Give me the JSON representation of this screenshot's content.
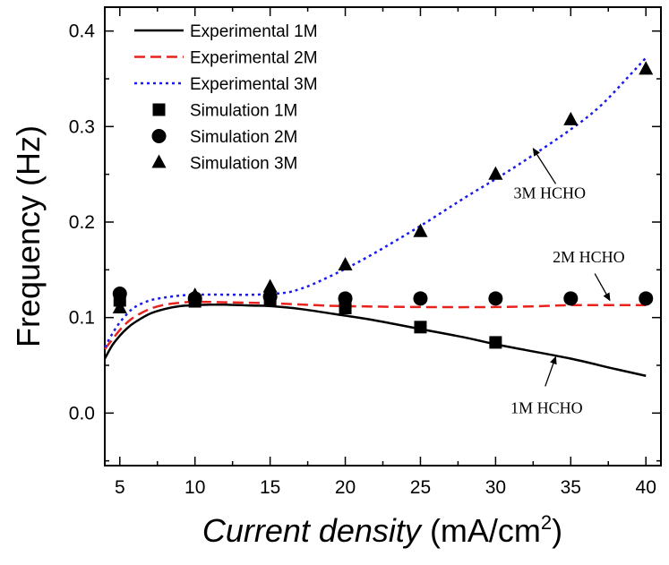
{
  "chart_data": {
    "type": "line",
    "xlabel_italic": "Current density",
    "xlabel_unit": "(mA/cm",
    "xlabel_sup": "2",
    "xlabel_close": ")",
    "ylabel": "Frequency (Hz)",
    "xlim": [
      4,
      41
    ],
    "ylim": [
      -0.055,
      0.425
    ],
    "xticks": [
      5,
      10,
      15,
      20,
      25,
      30,
      35,
      40
    ],
    "xtick_labels": [
      "5",
      "10",
      "15",
      "20",
      "25",
      "30",
      "35",
      "40"
    ],
    "yticks": [
      0.0,
      0.1,
      0.2,
      0.3,
      0.4
    ],
    "ytick_labels": [
      "0.0",
      "0.1",
      "0.2",
      "0.3",
      "0.4"
    ],
    "legend_position": "top-left",
    "series": [
      {
        "name": "Experimental 1M",
        "kind": "line",
        "style": "solid",
        "color": "#000000",
        "x": [
          4,
          4.5,
          5,
          5.5,
          6,
          7,
          8,
          9,
          10,
          11,
          12,
          13,
          14,
          15,
          17,
          20,
          22,
          25,
          28,
          30,
          32,
          35,
          38,
          40
        ],
        "y": [
          0.057,
          0.071,
          0.081,
          0.089,
          0.095,
          0.104,
          0.109,
          0.112,
          0.113,
          0.1135,
          0.1135,
          0.113,
          0.1125,
          0.112,
          0.109,
          0.102,
          0.097,
          0.088,
          0.079,
          0.072,
          0.066,
          0.057,
          0.046,
          0.039
        ]
      },
      {
        "name": "Experimental 2M",
        "kind": "line",
        "style": "dashed",
        "color": "#e8221c",
        "x": [
          4,
          4.5,
          5,
          5.5,
          6,
          7,
          8,
          9,
          10,
          12,
          15,
          18,
          20,
          25,
          30,
          33,
          35,
          38,
          40
        ],
        "y": [
          0.067,
          0.077,
          0.087,
          0.095,
          0.101,
          0.109,
          0.1135,
          0.1155,
          0.1165,
          0.116,
          0.115,
          0.113,
          0.112,
          0.111,
          0.111,
          0.112,
          0.113,
          0.113,
          0.113
        ]
      },
      {
        "name": "Experimental 3M",
        "kind": "line",
        "style": "dotted",
        "color": "#1a1aee",
        "x": [
          4,
          4.5,
          5,
          5.5,
          6,
          7,
          8,
          9,
          10,
          12,
          14,
          16,
          17,
          18,
          20,
          22,
          25,
          28,
          30,
          32,
          35,
          37,
          39,
          40
        ],
        "y": [
          0.069,
          0.083,
          0.095,
          0.104,
          0.111,
          0.118,
          0.121,
          0.123,
          0.124,
          0.124,
          0.124,
          0.126,
          0.13,
          0.136,
          0.151,
          0.168,
          0.196,
          0.226,
          0.245,
          0.265,
          0.297,
          0.322,
          0.355,
          0.372
        ]
      },
      {
        "name": "Simulation 1M",
        "kind": "scatter",
        "marker": "square",
        "color": "#000000",
        "x": [
          5,
          10,
          15,
          20,
          25,
          30
        ],
        "y": [
          0.118,
          0.117,
          0.118,
          0.11,
          0.09,
          0.074
        ]
      },
      {
        "name": "Simulation 2M",
        "kind": "scatter",
        "marker": "circle",
        "color": "#000000",
        "x": [
          5,
          10,
          15,
          20,
          25,
          30,
          35,
          40
        ],
        "y": [
          0.125,
          0.12,
          0.122,
          0.12,
          0.12,
          0.12,
          0.12,
          0.12
        ]
      },
      {
        "name": "Simulation 3M",
        "kind": "scatter",
        "marker": "triangle",
        "color": "#000000",
        "x": [
          5,
          10,
          15,
          20,
          25,
          30,
          35,
          40
        ],
        "y": [
          0.11,
          0.123,
          0.132,
          0.155,
          0.19,
          0.25,
          0.307,
          0.36
        ]
      }
    ],
    "annotations": [
      {
        "text": "3M HCHO",
        "text_x": 33.6,
        "text_y": 0.225,
        "arrow_from": [
          34.0,
          0.24
        ],
        "arrow_to": [
          32.5,
          0.277
        ]
      },
      {
        "text": "2M HCHO",
        "text_x": 36.2,
        "text_y": 0.158,
        "arrow_from": [
          36.6,
          0.146
        ],
        "arrow_to": [
          37.6,
          0.118
        ]
      },
      {
        "text": "1M HCHO",
        "text_x": 33.4,
        "text_y": 0.0,
        "arrow_from": [
          33.3,
          0.028
        ],
        "arrow_to": [
          34.0,
          0.059
        ]
      }
    ]
  }
}
